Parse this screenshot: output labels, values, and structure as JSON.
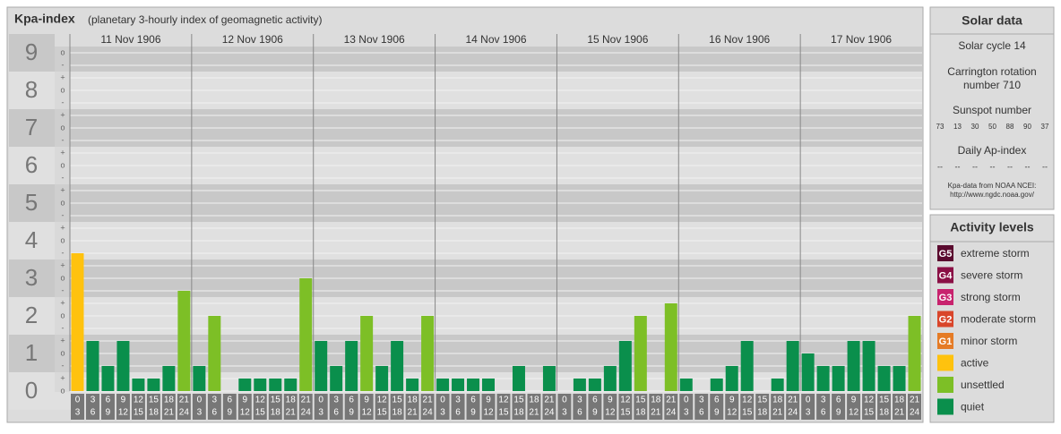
{
  "chart_data": {
    "type": "bar",
    "title": "Kpa-index",
    "subtitle": "(planetary 3-hourly index of geomagnetic activity)",
    "days": [
      "11 Nov 1906",
      "12 Nov 1906",
      "13 Nov 1906",
      "14 Nov 1906",
      "15 Nov 1906",
      "16 Nov 1906",
      "17 Nov 1906"
    ],
    "intervals": [
      [
        "0",
        "3"
      ],
      [
        "3",
        "6"
      ],
      [
        "6",
        "9"
      ],
      [
        "9",
        "12"
      ],
      [
        "12",
        "15"
      ],
      [
        "15",
        "18"
      ],
      [
        "18",
        "21"
      ],
      [
        "21",
        "24"
      ]
    ],
    "values": [
      3.667,
      1.333,
      0.667,
      1.333,
      0.333,
      0.333,
      0.667,
      2.667,
      0.667,
      2,
      0,
      0.333,
      0.333,
      0.333,
      0.333,
      3,
      1.333,
      0.667,
      1.333,
      2,
      0.667,
      1.333,
      0.333,
      2,
      0.333,
      0.333,
      0.333,
      0.333,
      0,
      0.667,
      0,
      0.667,
      0,
      0.333,
      0.333,
      0.667,
      1.333,
      2,
      0,
      2.333,
      0.333,
      0,
      0.333,
      0.667,
      1.333,
      0,
      0.333,
      1.333,
      1,
      0.667,
      0.667,
      1.333,
      1.333,
      0.667,
      0.667,
      2
    ],
    "colors": [
      "#ffc20e",
      "#0a8f4c",
      "#0a8f4c",
      "#0a8f4c",
      "#0a8f4c",
      "#0a8f4c",
      "#0a8f4c",
      "#7dbf26",
      "#0a8f4c",
      "#7dbf26",
      "#0a8f4c",
      "#0a8f4c",
      "#0a8f4c",
      "#0a8f4c",
      "#0a8f4c",
      "#7dbf26",
      "#0a8f4c",
      "#0a8f4c",
      "#0a8f4c",
      "#7dbf26",
      "#0a8f4c",
      "#0a8f4c",
      "#0a8f4c",
      "#7dbf26",
      "#0a8f4c",
      "#0a8f4c",
      "#0a8f4c",
      "#0a8f4c",
      "#0a8f4c",
      "#0a8f4c",
      "#0a8f4c",
      "#0a8f4c",
      "#0a8f4c",
      "#0a8f4c",
      "#0a8f4c",
      "#0a8f4c",
      "#0a8f4c",
      "#7dbf26",
      "#0a8f4c",
      "#7dbf26",
      "#0a8f4c",
      "#0a8f4c",
      "#0a8f4c",
      "#0a8f4c",
      "#0a8f4c",
      "#0a8f4c",
      "#0a8f4c",
      "#0a8f4c",
      "#0a8f4c",
      "#0a8f4c",
      "#0a8f4c",
      "#0a8f4c",
      "#0a8f4c",
      "#0a8f4c",
      "#0a8f4c",
      "#7dbf26"
    ],
    "ylim": [
      0,
      9.5
    ],
    "yticks": [
      0,
      1,
      2,
      3,
      4,
      5,
      6,
      7,
      8,
      9
    ],
    "minor_ticks": [
      {
        "value": 0,
        "label": "o"
      },
      {
        "value": 0.333,
        "label": "+"
      },
      {
        "value": 0.667,
        "label": "-"
      },
      {
        "value": 1,
        "label": "o"
      },
      {
        "value": 1.333,
        "label": "+"
      },
      {
        "value": 1.667,
        "label": "-"
      },
      {
        "value": 2,
        "label": "o"
      },
      {
        "value": 2.333,
        "label": "+"
      },
      {
        "value": 2.667,
        "label": "-"
      },
      {
        "value": 3,
        "label": "o"
      },
      {
        "value": 3.333,
        "label": "+"
      },
      {
        "value": 3.667,
        "label": "-"
      },
      {
        "value": 4,
        "label": "o"
      },
      {
        "value": 4.333,
        "label": "+"
      },
      {
        "value": 4.667,
        "label": "-"
      },
      {
        "value": 5,
        "label": "o"
      },
      {
        "value": 5.333,
        "label": "+"
      },
      {
        "value": 5.667,
        "label": "-"
      },
      {
        "value": 6,
        "label": "o"
      },
      {
        "value": 6.333,
        "label": "+"
      },
      {
        "value": 6.667,
        "label": "-"
      },
      {
        "value": 7,
        "label": "o"
      },
      {
        "value": 7.333,
        "label": "+"
      },
      {
        "value": 7.667,
        "label": "-"
      },
      {
        "value": 8,
        "label": "o"
      },
      {
        "value": 8.333,
        "label": "+"
      },
      {
        "value": 8.667,
        "label": "-"
      },
      {
        "value": 9,
        "label": "o"
      }
    ],
    "grid": true
  },
  "solar_data": {
    "title": "Solar data",
    "cycle": "Solar cycle 14",
    "rotation": [
      "Carrington rotation",
      "number 710"
    ],
    "sunspot_title": "Sunspot number",
    "sunspots": [
      73,
      13,
      30,
      50,
      88,
      90,
      37
    ],
    "ap_title": "Daily Ap-index",
    "ap": [
      "--",
      "--",
      "--",
      "--",
      "--",
      "--",
      "--"
    ],
    "source": [
      "Kpa-data from NOAA NCEI:",
      "http://www.ngdc.noaa.gov/"
    ]
  },
  "activity_levels": {
    "title": "Activity levels",
    "items": [
      {
        "badge": "G5",
        "label": "extreme storm",
        "color": "#5a0a2e"
      },
      {
        "badge": "G4",
        "label": "severe storm",
        "color": "#8a1045"
      },
      {
        "badge": "G3",
        "label": "strong storm",
        "color": "#c8236e"
      },
      {
        "badge": "G2",
        "label": "moderate storm",
        "color": "#d9452a"
      },
      {
        "badge": "G1",
        "label": "minor storm",
        "color": "#e57b25"
      },
      {
        "label": "active",
        "color": "#ffc20e"
      },
      {
        "label": "unsettled",
        "color": "#7dbf26"
      },
      {
        "label": "quiet",
        "color": "#0a8f4c"
      }
    ]
  }
}
